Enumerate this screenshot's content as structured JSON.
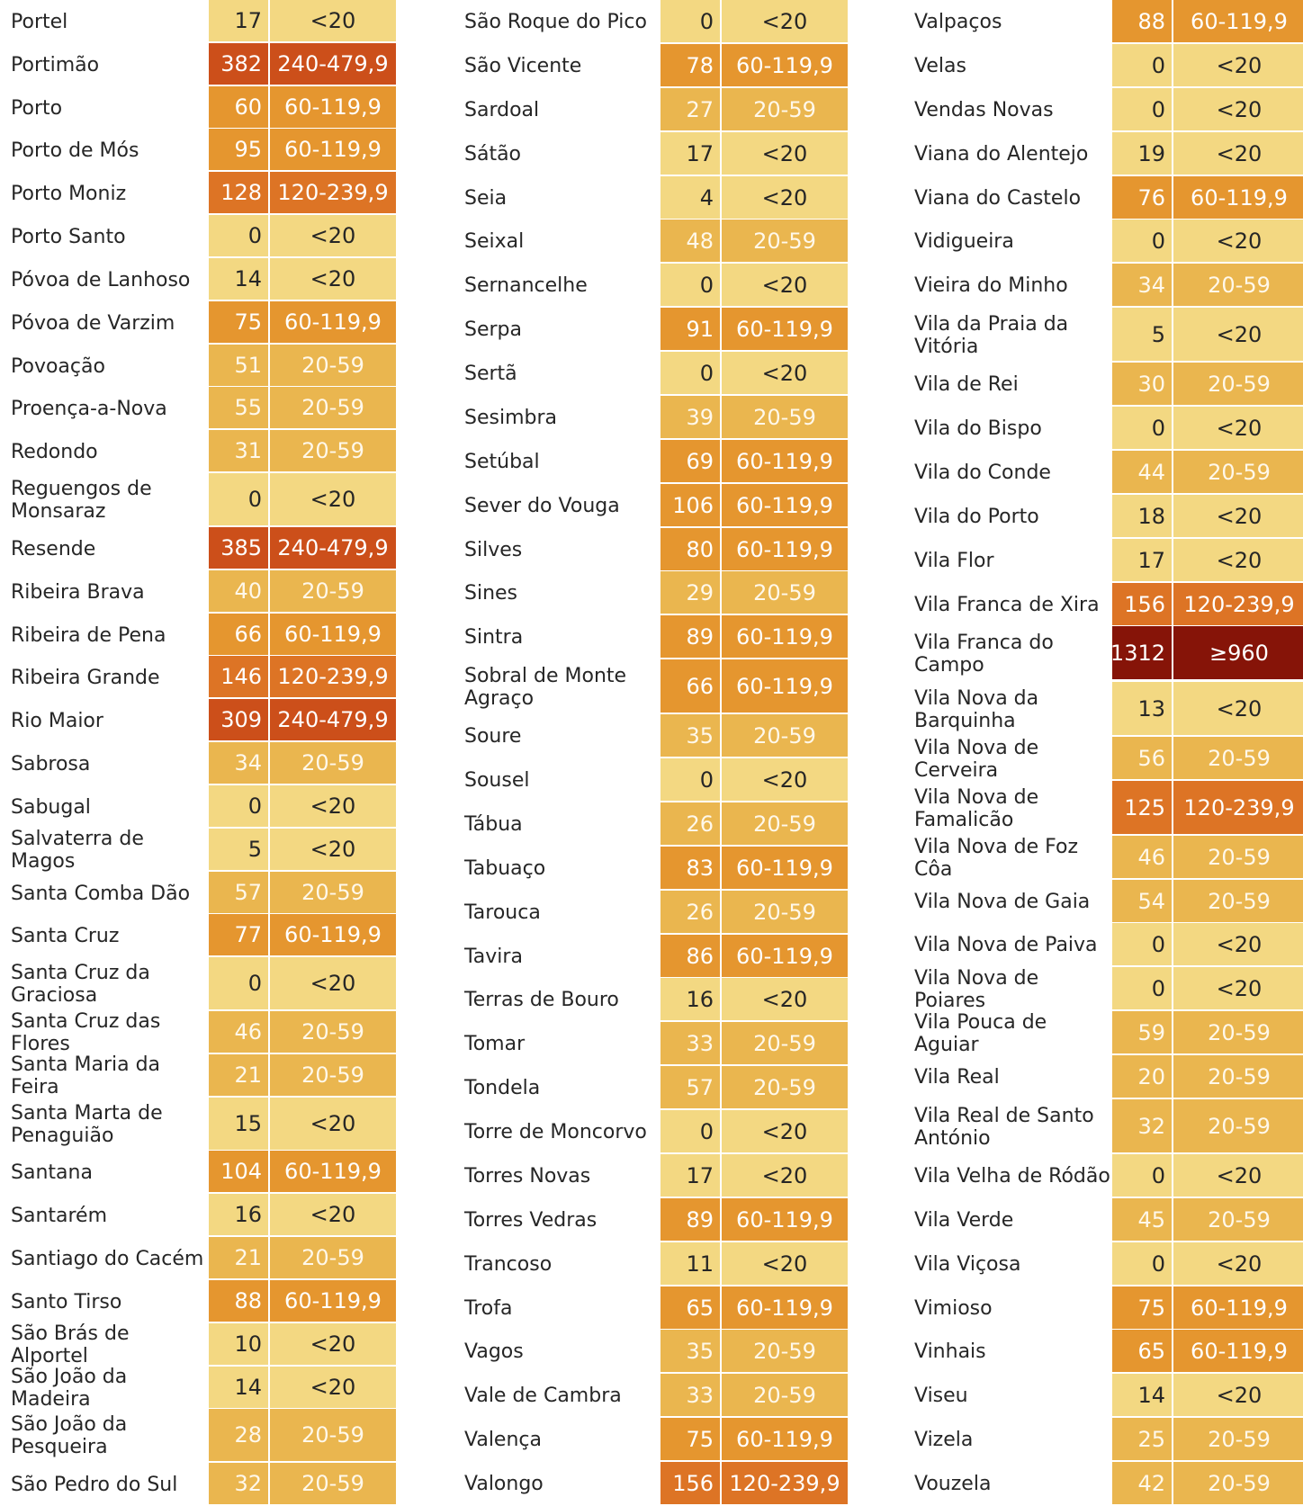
{
  "colors": {
    "<20": "#f3d882",
    "20-59": "#eab64f",
    "60-119,9": "#e5962f",
    "120-239,9": "#dd7425",
    "240-479,9": "#cc4f1a",
    "≥960": "#861408"
  },
  "columns": [
    {
      "rows": [
        {
          "name": "Portel",
          "count": "17",
          "class": "<20"
        },
        {
          "name": "Portimão",
          "count": "382",
          "class": "240-479,9"
        },
        {
          "name": "Porto",
          "count": "60",
          "class": "60-119,9"
        },
        {
          "name": "Porto de Mós",
          "count": "95",
          "class": "60-119,9"
        },
        {
          "name": "Porto Moniz",
          "count": "128",
          "class": "120-239,9"
        },
        {
          "name": "Porto Santo",
          "count": "0",
          "class": "<20"
        },
        {
          "name": "Póvoa de Lanhoso",
          "count": "14",
          "class": "<20"
        },
        {
          "name": "Póvoa de Varzim",
          "count": "75",
          "class": "60-119,9"
        },
        {
          "name": "Povoação",
          "count": "51",
          "class": "20-59"
        },
        {
          "name": "Proença-a-Nova",
          "count": "55",
          "class": "20-59"
        },
        {
          "name": "Redondo",
          "count": "31",
          "class": "20-59"
        },
        {
          "name": "Reguengos de Monsaraz",
          "count": "0",
          "class": "<20"
        },
        {
          "name": "Resende",
          "count": "385",
          "class": "240-479,9"
        },
        {
          "name": "Ribeira Brava",
          "count": "40",
          "class": "20-59"
        },
        {
          "name": "Ribeira de Pena",
          "count": "66",
          "class": "60-119,9"
        },
        {
          "name": "Ribeira Grande",
          "count": "146",
          "class": "120-239,9"
        },
        {
          "name": "Rio Maior",
          "count": "309",
          "class": "240-479,9"
        },
        {
          "name": "Sabrosa",
          "count": "34",
          "class": "20-59"
        },
        {
          "name": "Sabugal",
          "count": "0",
          "class": "<20"
        },
        {
          "name": "Salvaterra de Magos",
          "count": "5",
          "class": "<20"
        },
        {
          "name": "Santa Comba Dão",
          "count": "57",
          "class": "20-59"
        },
        {
          "name": "Santa Cruz",
          "count": "77",
          "class": "60-119,9"
        },
        {
          "name": "Santa Cruz da Graciosa",
          "count": "0",
          "class": "<20"
        },
        {
          "name": "Santa Cruz das Flores",
          "count": "46",
          "class": "20-59"
        },
        {
          "name": "Santa Maria da Feira",
          "count": "21",
          "class": "20-59"
        },
        {
          "name": "Santa Marta de Penaguião",
          "count": "15",
          "class": "<20"
        },
        {
          "name": "Santana",
          "count": "104",
          "class": "60-119,9"
        },
        {
          "name": "Santarém",
          "count": "16",
          "class": "<20"
        },
        {
          "name": "Santiago do Cacém",
          "count": "21",
          "class": "20-59"
        },
        {
          "name": "Santo Tirso",
          "count": "88",
          "class": "60-119,9"
        },
        {
          "name": "São Brás de Alportel",
          "count": "10",
          "class": "<20"
        },
        {
          "name": "São João da Madeira",
          "count": "14",
          "class": "<20"
        },
        {
          "name": "São João da Pesqueira",
          "count": "28",
          "class": "20-59"
        },
        {
          "name": "São Pedro do Sul",
          "count": "32",
          "class": "20-59"
        }
      ]
    },
    {
      "rows": [
        {
          "name": "São Roque do Pico",
          "count": "0",
          "class": "<20"
        },
        {
          "name": "São Vicente",
          "count": "78",
          "class": "60-119,9"
        },
        {
          "name": "Sardoal",
          "count": "27",
          "class": "20-59"
        },
        {
          "name": "Sátão",
          "count": "17",
          "class": "<20"
        },
        {
          "name": "Seia",
          "count": "4",
          "class": "<20"
        },
        {
          "name": "Seixal",
          "count": "48",
          "class": "20-59"
        },
        {
          "name": "Sernancelhe",
          "count": "0",
          "class": "<20"
        },
        {
          "name": "Serpa",
          "count": "91",
          "class": "60-119,9"
        },
        {
          "name": "Sertã",
          "count": "0",
          "class": "<20"
        },
        {
          "name": "Sesimbra",
          "count": "39",
          "class": "20-59"
        },
        {
          "name": "Setúbal",
          "count": "69",
          "class": "60-119,9"
        },
        {
          "name": "Sever do Vouga",
          "count": "106",
          "class": "60-119,9"
        },
        {
          "name": "Silves",
          "count": "80",
          "class": "60-119,9"
        },
        {
          "name": "Sines",
          "count": "29",
          "class": "20-59"
        },
        {
          "name": "Sintra",
          "count": "89",
          "class": "60-119,9"
        },
        {
          "name": "Sobral de Monte Agraço",
          "count": "66",
          "class": "60-119,9"
        },
        {
          "name": "Soure",
          "count": "35",
          "class": "20-59"
        },
        {
          "name": "Sousel",
          "count": "0",
          "class": "<20"
        },
        {
          "name": "Tábua",
          "count": "26",
          "class": "20-59"
        },
        {
          "name": "Tabuaço",
          "count": "83",
          "class": "60-119,9"
        },
        {
          "name": "Tarouca",
          "count": "26",
          "class": "20-59"
        },
        {
          "name": "Tavira",
          "count": "86",
          "class": "60-119,9"
        },
        {
          "name": "Terras de Bouro",
          "count": "16",
          "class": "<20"
        },
        {
          "name": "Tomar",
          "count": "33",
          "class": "20-59"
        },
        {
          "name": "Tondela",
          "count": "57",
          "class": "20-59"
        },
        {
          "name": "Torre de Moncorvo",
          "count": "0",
          "class": "<20"
        },
        {
          "name": "Torres Novas",
          "count": "17",
          "class": "<20"
        },
        {
          "name": "Torres Vedras",
          "count": "89",
          "class": "60-119,9"
        },
        {
          "name": "Trancoso",
          "count": "11",
          "class": "<20"
        },
        {
          "name": "Trofa",
          "count": "65",
          "class": "60-119,9"
        },
        {
          "name": "Vagos",
          "count": "35",
          "class": "20-59"
        },
        {
          "name": "Vale de Cambra",
          "count": "33",
          "class": "20-59"
        },
        {
          "name": "Valença",
          "count": "75",
          "class": "60-119,9"
        },
        {
          "name": "Valongo",
          "count": "156",
          "class": "120-239,9"
        }
      ]
    },
    {
      "rows": [
        {
          "name": "Valpaços",
          "count": "88",
          "class": "60-119,9"
        },
        {
          "name": "Velas",
          "count": "0",
          "class": "<20"
        },
        {
          "name": "Vendas Novas",
          "count": "0",
          "class": "<20"
        },
        {
          "name": "Viana do Alentejo",
          "count": "19",
          "class": "<20"
        },
        {
          "name": "Viana do Castelo",
          "count": "76",
          "class": "60-119,9"
        },
        {
          "name": "Vidigueira",
          "count": "0",
          "class": "<20"
        },
        {
          "name": "Vieira do Minho",
          "count": "34",
          "class": "20-59"
        },
        {
          "name": "Vila da Praia da Vitória",
          "count": "5",
          "class": "<20"
        },
        {
          "name": "Vila de Rei",
          "count": "30",
          "class": "20-59"
        },
        {
          "name": "Vila do Bispo",
          "count": "0",
          "class": "<20"
        },
        {
          "name": "Vila do Conde",
          "count": "44",
          "class": "20-59"
        },
        {
          "name": "Vila do Porto",
          "count": "18",
          "class": "<20"
        },
        {
          "name": "Vila Flor",
          "count": "17",
          "class": "<20"
        },
        {
          "name": "Vila Franca de Xira",
          "count": "156",
          "class": "120-239,9"
        },
        {
          "name": "Vila Franca do Campo",
          "count": "1312",
          "class": "≥960"
        },
        {
          "name": "Vila Nova da Barquinha",
          "count": "13",
          "class": "<20"
        },
        {
          "name": "Vila Nova de Cerveira",
          "count": "56",
          "class": "20-59"
        },
        {
          "name": "Vila Nova de Famalicão",
          "count": "125",
          "class": "120-239,9"
        },
        {
          "name": "Vila Nova de Foz Côa",
          "count": "46",
          "class": "20-59"
        },
        {
          "name": "Vila Nova de Gaia",
          "count": "54",
          "class": "20-59"
        },
        {
          "name": "Vila Nova de Paiva",
          "count": "0",
          "class": "<20"
        },
        {
          "name": "Vila Nova de Poiares",
          "count": "0",
          "class": "<20"
        },
        {
          "name": "Vila Pouca de Aguiar",
          "count": "59",
          "class": "20-59"
        },
        {
          "name": "Vila Real",
          "count": "20",
          "class": "20-59"
        },
        {
          "name": "Vila Real de Santo António",
          "count": "32",
          "class": "20-59"
        },
        {
          "name": "Vila Velha de Ródão",
          "count": "0",
          "class": "<20"
        },
        {
          "name": "Vila Verde",
          "count": "45",
          "class": "20-59"
        },
        {
          "name": "Vila Viçosa",
          "count": "0",
          "class": "<20"
        },
        {
          "name": "Vimioso",
          "count": "75",
          "class": "60-119,9"
        },
        {
          "name": "Vinhais",
          "count": "65",
          "class": "60-119,9"
        },
        {
          "name": "Viseu",
          "count": "14",
          "class": "<20"
        },
        {
          "name": "Vizela",
          "count": "25",
          "class": "20-59"
        },
        {
          "name": "Vouzela",
          "count": "42",
          "class": "20-59"
        }
      ]
    }
  ]
}
